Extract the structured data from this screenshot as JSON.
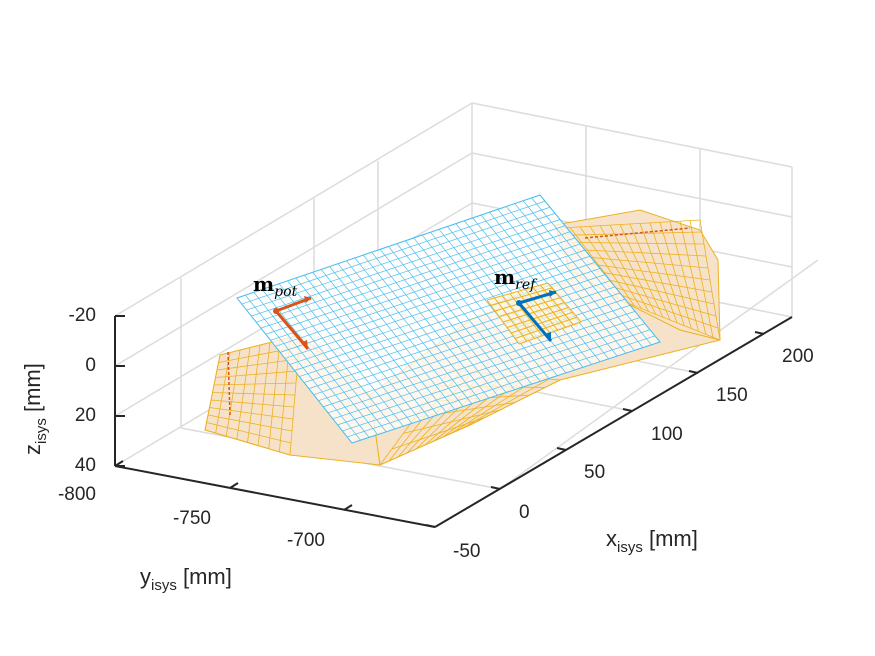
{
  "chart_data": {
    "type": "surface3d",
    "x_axis": {
      "label_main": "x",
      "label_sub": "isys",
      "label_unit": " [mm]",
      "ticks": [
        "-50",
        "0",
        "50",
        "100",
        "150",
        "200"
      ]
    },
    "y_axis": {
      "label_main": "y",
      "label_sub": "isys",
      "label_unit": " [mm]",
      "ticks": [
        "-800",
        "-750",
        "-700"
      ]
    },
    "z_axis": {
      "label_main": "z",
      "label_sub": "isys",
      "label_unit": " [mm]",
      "ticks": [
        "-20",
        "0",
        "20",
        "40"
      ],
      "reversed": true
    },
    "grid": true,
    "annotations": [
      {
        "main": "m",
        "sub": "pot",
        "color": "#d95319"
      },
      {
        "main": "m",
        "sub": "ref",
        "color": "#0072bd"
      }
    ],
    "colors": {
      "surface_fill": "#f6e2c8",
      "surface_mesh": "#edb120",
      "plane_mesh": "#4dbeee",
      "axis": "#262626",
      "gridline": "#dcdcdc"
    }
  }
}
